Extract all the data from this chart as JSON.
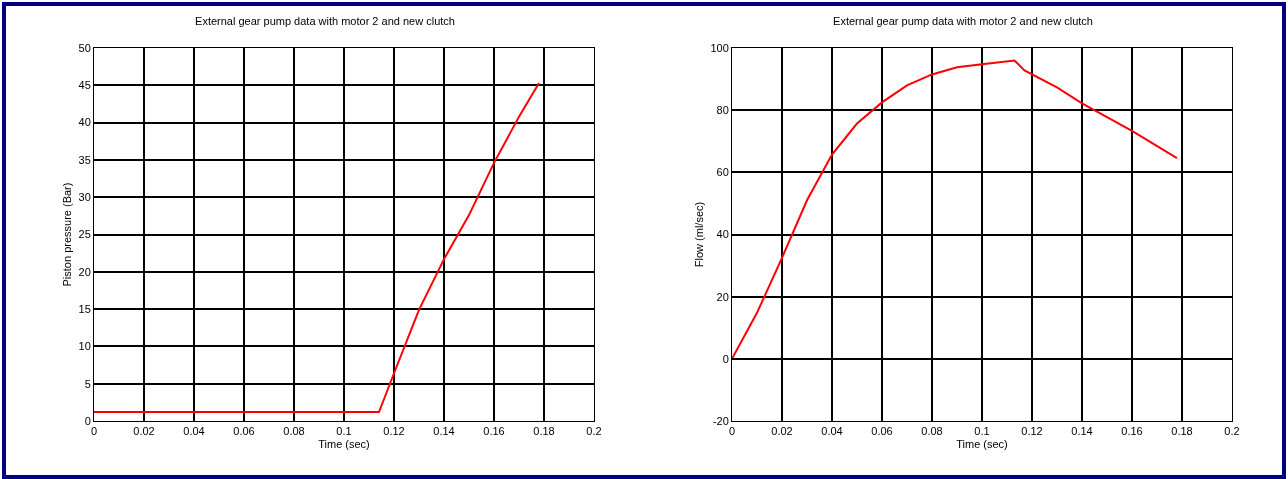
{
  "chart_data": [
    {
      "type": "line",
      "title": "External gear pump data with motor 2 and new clutch",
      "xlabel": "Time (sec)",
      "ylabel": "Piston pressure (Bar)",
      "x": [
        0,
        0.02,
        0.04,
        0.06,
        0.08,
        0.1,
        0.114,
        0.12,
        0.13,
        0.14,
        0.15,
        0.16,
        0.17,
        0.178
      ],
      "series": [
        {
          "color": "#ff0000",
          "values": [
            1.2,
            1.2,
            1.2,
            1.2,
            1.2,
            1.2,
            1.2,
            6.4,
            14.9,
            21.7,
            27.6,
            34.6,
            40.8,
            45.3
          ]
        }
      ],
      "xlim": [
        0,
        0.2
      ],
      "xticks": [
        0,
        0.02,
        0.04,
        0.06,
        0.08,
        0.1,
        0.12,
        0.14,
        0.16,
        0.18,
        0.2
      ],
      "ylim": [
        0,
        50
      ],
      "yticks": [
        0,
        5,
        10,
        15,
        20,
        25,
        30,
        35,
        40,
        45,
        50
      ],
      "grid": true,
      "marker": "none",
      "line_style": "solid"
    },
    {
      "type": "line",
      "title": "External gear pump data with motor 2 and new clutch",
      "xlabel": "Time (sec)",
      "ylabel": "Flow (ml/sec)",
      "x": [
        0,
        0.01,
        0.02,
        0.03,
        0.04,
        0.05,
        0.06,
        0.07,
        0.08,
        0.09,
        0.1,
        0.113,
        0.117,
        0.13,
        0.14,
        0.15,
        0.16,
        0.178
      ],
      "series": [
        {
          "color": "#ff0000",
          "values": [
            0,
            14.8,
            32.5,
            51,
            65.7,
            75.7,
            82.5,
            88,
            91.5,
            93.8,
            94.8,
            96,
            92.8,
            87.3,
            82.2,
            77.8,
            73.3,
            64.6
          ]
        }
      ],
      "xlim": [
        0,
        0.2
      ],
      "xticks": [
        0,
        0.02,
        0.04,
        0.06,
        0.08,
        0.1,
        0.12,
        0.14,
        0.16,
        0.18,
        0.2
      ],
      "ylim": [
        -20,
        100
      ],
      "yticks": [
        -20,
        0,
        20,
        40,
        60,
        80,
        100
      ],
      "grid": true,
      "marker": "none",
      "line_style": "solid"
    }
  ]
}
